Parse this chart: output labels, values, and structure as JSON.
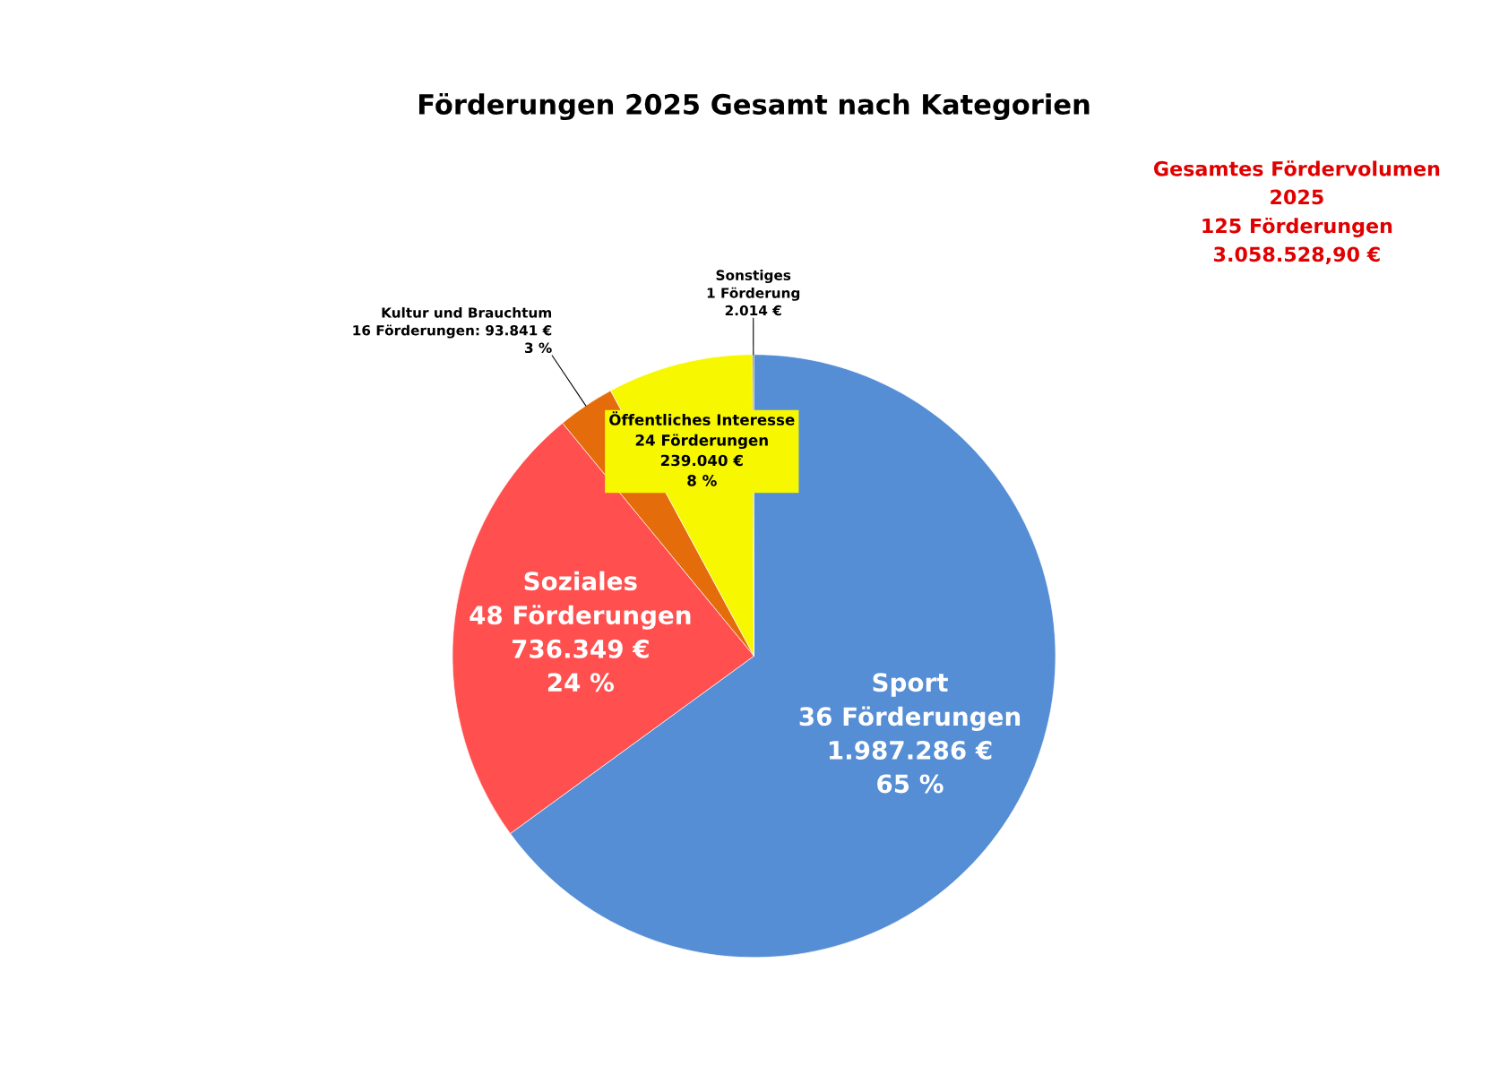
{
  "chart_data": {
    "type": "pie",
    "title": "Förderungen 2025 Gesamt nach Kategorien",
    "categories": [
      "Sport",
      "Soziales",
      "Kultur und Brauchtum",
      "Öffentliches Interesse",
      "Sonstiges"
    ],
    "values": [
      1987286,
      736349,
      93841,
      239040,
      2014
    ],
    "colors": [
      "#558ed5",
      "#ff4f4f",
      "#e46c0a",
      "#f7f700",
      "#1f1f1f"
    ],
    "value_labels": [
      "36 Förderungen\n1.987.286 €\n65 %",
      "48 Förderungen\n736.349 €\n24 %",
      "16 Förderungen: 93.841 €\n3 %",
      "24 Förderungen\n239.040 €\n8 %",
      "1 Förderung\n2.014 €"
    ],
    "annotations": [
      "Gesamtes Fördervolumen\n2025\n125 Förderungen\n3.058.528,90 €"
    ],
    "legend": false
  }
}
